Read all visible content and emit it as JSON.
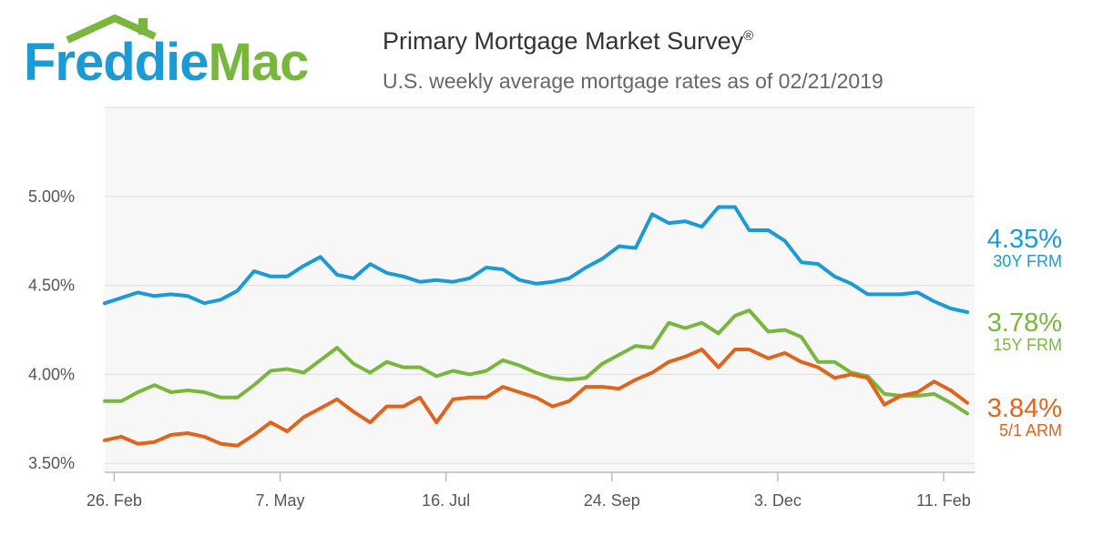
{
  "brand": {
    "logo_part1": "Freddie",
    "logo_part2": "Mac"
  },
  "header": {
    "title": "Primary Mortgage Market Survey",
    "title_mark": "®",
    "subtitle": "U.S. weekly average mortgage rates as of 02/21/2019"
  },
  "colors": {
    "frm30": "#1a9ad6",
    "frm15": "#78b73c",
    "arm51": "#e0641c",
    "grid": "#dddddd",
    "plot_bg": "#f7f7f7"
  },
  "chart_data": {
    "type": "line",
    "title": "Primary Mortgage Market Survey",
    "subtitle": "U.S. weekly average mortgage rates as of 02/21/2019",
    "x": [
      "2018-02-22",
      "2018-03-01",
      "2018-03-08",
      "2018-03-15",
      "2018-03-22",
      "2018-03-29",
      "2018-04-05",
      "2018-04-12",
      "2018-04-19",
      "2018-04-26",
      "2018-05-03",
      "2018-05-10",
      "2018-05-17",
      "2018-05-24",
      "2018-05-31",
      "2018-06-07",
      "2018-06-14",
      "2018-06-21",
      "2018-06-28",
      "2018-07-05",
      "2018-07-12",
      "2018-07-19",
      "2018-07-26",
      "2018-08-02",
      "2018-08-09",
      "2018-08-16",
      "2018-08-23",
      "2018-08-30",
      "2018-09-06",
      "2018-09-13",
      "2018-09-20",
      "2018-09-27",
      "2018-10-04",
      "2018-10-11",
      "2018-10-18",
      "2018-10-25",
      "2018-11-01",
      "2018-11-08",
      "2018-11-15",
      "2018-11-21",
      "2018-11-29",
      "2018-12-06",
      "2018-12-13",
      "2018-12-20",
      "2018-12-27",
      "2019-01-03",
      "2019-01-10",
      "2019-01-17",
      "2019-01-24",
      "2019-01-31",
      "2019-02-07",
      "2019-02-14",
      "2019-02-21"
    ],
    "xticks": [
      "26. Feb",
      "7. May",
      "16. Jul",
      "24. Sep",
      "3. Dec",
      "11. Feb"
    ],
    "xtick_dates": [
      "2018-02-26",
      "2018-05-07",
      "2018-07-16",
      "2018-09-24",
      "2018-12-03",
      "2019-02-11"
    ],
    "yticks": [
      "3.50%",
      "4.00%",
      "4.50%",
      "5.00%"
    ],
    "ylim": [
      3.45,
      5.5
    ],
    "series": [
      {
        "name": "30Y FRM",
        "last_label": "4.35%",
        "values": [
          4.4,
          4.43,
          4.46,
          4.44,
          4.45,
          4.44,
          4.4,
          4.42,
          4.47,
          4.58,
          4.55,
          4.55,
          4.61,
          4.66,
          4.56,
          4.54,
          4.62,
          4.57,
          4.55,
          4.52,
          4.53,
          4.52,
          4.54,
          4.6,
          4.59,
          4.53,
          4.51,
          4.52,
          4.54,
          4.6,
          4.65,
          4.72,
          4.71,
          4.9,
          4.85,
          4.86,
          4.83,
          4.94,
          4.94,
          4.81,
          4.81,
          4.75,
          4.63,
          4.62,
          4.55,
          4.51,
          4.45,
          4.45,
          4.45,
          4.46,
          4.41,
          4.37,
          4.35
        ]
      },
      {
        "name": "15Y FRM",
        "last_label": "3.78%",
        "values": [
          3.85,
          3.85,
          3.9,
          3.94,
          3.9,
          3.91,
          3.9,
          3.87,
          3.87,
          3.94,
          4.02,
          4.03,
          4.01,
          4.08,
          4.15,
          4.06,
          4.01,
          4.07,
          4.04,
          4.04,
          3.99,
          4.02,
          4.0,
          4.02,
          4.08,
          4.05,
          4.01,
          3.98,
          3.97,
          3.98,
          4.06,
          4.11,
          4.16,
          4.15,
          4.29,
          4.26,
          4.29,
          4.23,
          4.33,
          4.36,
          4.24,
          4.25,
          4.21,
          4.07,
          4.07,
          4.01,
          3.99,
          3.89,
          3.88,
          3.88,
          3.89,
          3.84,
          3.78
        ]
      },
      {
        "name": "5/1 ARM",
        "last_label": "3.84%",
        "values": [
          3.63,
          3.65,
          3.61,
          3.62,
          3.66,
          3.67,
          3.65,
          3.61,
          3.6,
          3.66,
          3.73,
          3.68,
          3.76,
          3.81,
          3.86,
          3.79,
          3.73,
          3.82,
          3.82,
          3.87,
          3.73,
          3.86,
          3.87,
          3.87,
          3.93,
          3.9,
          3.87,
          3.82,
          3.85,
          3.93,
          3.93,
          3.92,
          3.97,
          4.01,
          4.07,
          4.1,
          4.14,
          4.04,
          4.14,
          4.14,
          4.09,
          4.12,
          4.07,
          4.04,
          3.98,
          4.0,
          3.98,
          3.83,
          3.88,
          3.9,
          3.96,
          3.91,
          3.84
        ]
      }
    ],
    "legend": "right"
  }
}
